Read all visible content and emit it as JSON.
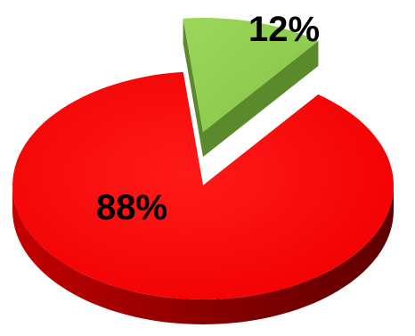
{
  "chart_data": {
    "type": "pie",
    "title": "",
    "categories": [
      "",
      ""
    ],
    "values": [
      88,
      12
    ],
    "data_labels": [
      "88%",
      "12%"
    ],
    "colors": [
      "#ff0000",
      "#92d050"
    ],
    "side_colors": [
      "#9b0000",
      "#5b8a2c"
    ],
    "style": "3d-exploded",
    "legend": "none"
  }
}
